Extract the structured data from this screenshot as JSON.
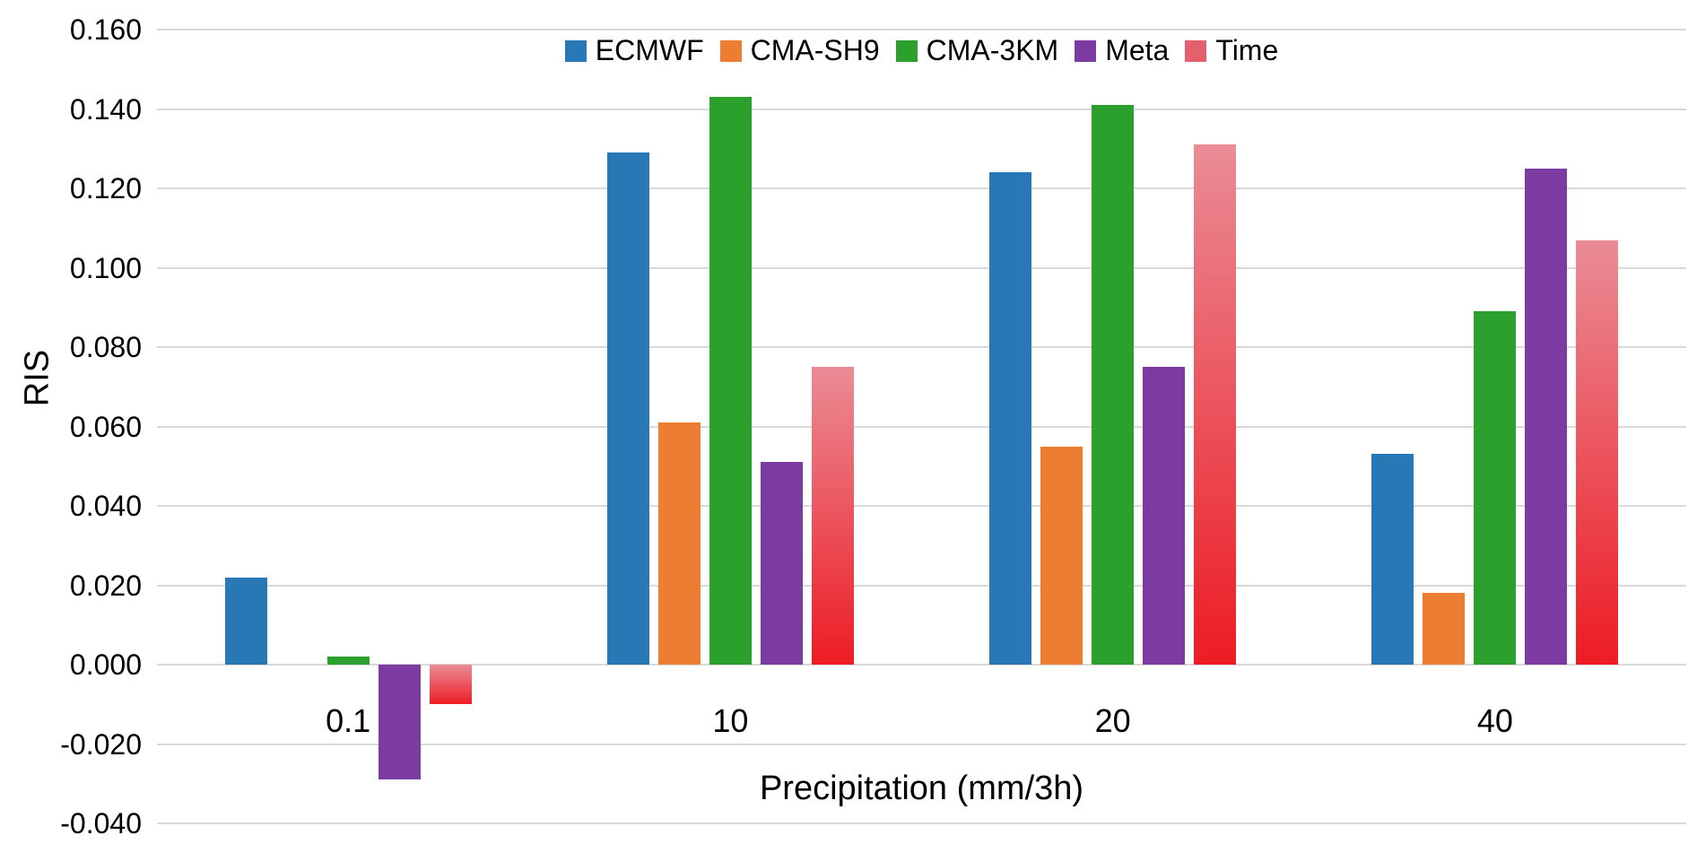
{
  "chart_data": {
    "type": "bar",
    "title": "",
    "xlabel": "Precipitation (mm/3h)",
    "ylabel": "RIS",
    "ylim": [
      -0.04,
      0.16
    ],
    "ytick_step": 0.02,
    "ytick_labels": [
      "0.160",
      "0.140",
      "0.120",
      "0.100",
      "0.080",
      "0.060",
      "0.040",
      "0.020",
      "0.000",
      "-0.020",
      "-0.040"
    ],
    "grid": true,
    "legend_position": "top-center",
    "categories": [
      "0.1",
      "10",
      "20",
      "40"
    ],
    "series": [
      {
        "name": "ECMWF",
        "color": "#2878B5",
        "values": [
          0.022,
          0.129,
          0.124,
          0.053
        ]
      },
      {
        "name": "CMA-SH9",
        "color": "#ED7D31",
        "values": [
          0.0,
          0.061,
          0.055,
          0.018
        ]
      },
      {
        "name": "CMA-3KM",
        "color": "#2CA02C",
        "values": [
          0.002,
          0.143,
          0.141,
          0.089
        ]
      },
      {
        "name": "Meta",
        "color": "#7C3BA0",
        "values": [
          -0.029,
          0.051,
          0.075,
          0.125
        ]
      },
      {
        "name": "Time",
        "color": "#E4606D",
        "gradient": [
          "#EA8C96",
          "#ED1C24"
        ],
        "values": [
          -0.01,
          0.075,
          0.131,
          0.107
        ]
      }
    ]
  }
}
